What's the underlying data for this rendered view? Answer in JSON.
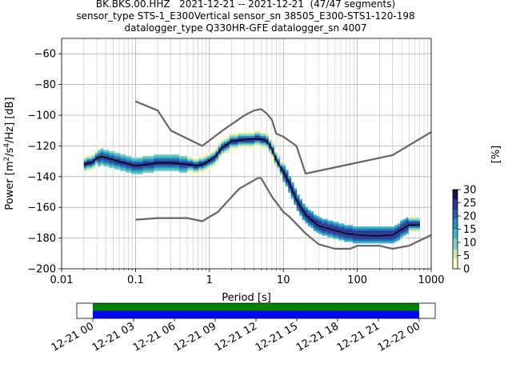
{
  "header": {
    "title_line1": "BK.BKS.00.HHZ   2021-12-21 -- 2021-12-21  (47/47 segments)",
    "title_line2": "sensor_type STS-1_E300Vertical sensor_sn 38505_E300-STS1-120-198",
    "title_line3": "datalogger_type Q330HR-GFE datalogger_sn 4007"
  },
  "chart_data": {
    "type": "heatmap",
    "xlabel": "Period [s]",
    "ylabel": "Power [m²/s⁴/Hz] [dB]",
    "xscale": "log",
    "xlim": [
      0.01,
      1000
    ],
    "ylim": [
      -200,
      -50
    ],
    "x_ticks": [
      0.01,
      0.1,
      1,
      10,
      100,
      1000
    ],
    "x_tick_labels": [
      "0.01",
      "0.1",
      "1",
      "10",
      "100",
      "1000"
    ],
    "y_ticks": [
      -200,
      -180,
      -160,
      -140,
      -120,
      -100,
      -80,
      -60
    ],
    "y_tick_labels": [
      "−200",
      "−180",
      "−160",
      "−140",
      "−120",
      "−100",
      "−80",
      "−60"
    ],
    "grid": true,
    "series": [
      {
        "name": "",
        "color": "#000000",
        "x": [
          0.02,
          0.025,
          0.03,
          0.035,
          0.05,
          0.07,
          0.1,
          0.15,
          0.2,
          0.3,
          0.5,
          0.7,
          0.9,
          1.2,
          1.5,
          2,
          3,
          4,
          5,
          6,
          7,
          8,
          10,
          12,
          15,
          20,
          30,
          50,
          70,
          100,
          150,
          200,
          300,
          500,
          700
        ],
        "y": [
          -132,
          -131,
          -128,
          -127,
          -129,
          -131,
          -133,
          -132,
          -131,
          -131,
          -132,
          -133,
          -131,
          -127,
          -121,
          -117,
          -116,
          -115.5,
          -115.5,
          -117,
          -122,
          -129,
          -137,
          -144,
          -155,
          -165,
          -172,
          -175,
          -177,
          -178,
          -178.5,
          -178.5,
          -178,
          -171.5,
          -171.5
        ]
      },
      {
        "name": "",
        "color": "#666666",
        "x": [
          0.1,
          0.2,
          0.3,
          0.8,
          1.5,
          3,
          4,
          5,
          6,
          7,
          8,
          10,
          15,
          20,
          300,
          1000
        ],
        "y": [
          -91,
          -97,
          -110,
          -120,
          -110,
          -100,
          -97,
          -96,
          -99,
          -103,
          -112,
          -114,
          -120,
          -138,
          -126,
          -111
        ]
      },
      {
        "name": "",
        "color": "#666666",
        "x": [
          0.1,
          0.2,
          0.5,
          0.8,
          1.3,
          2.5,
          4.5,
          5,
          7,
          10,
          12,
          20,
          30,
          50,
          80,
          100,
          150,
          200,
          300,
          500,
          1000
        ],
        "y": [
          -168,
          -167,
          -167,
          -169,
          -163,
          -148,
          -141,
          -141,
          -153,
          -163,
          -166,
          -177,
          -184,
          -187,
          -187,
          -185,
          -185,
          -185,
          -187,
          -185,
          -178
        ]
      }
    ],
    "colorbar": {
      "label": "[%]",
      "min": 0,
      "max": 30,
      "ticks": [
        0,
        5,
        10,
        15,
        20,
        25,
        30
      ],
      "tick_labels": [
        "0",
        "5",
        "10",
        "15",
        "20",
        "25",
        "30"
      ],
      "colors": [
        "#ffffcc",
        "#c7e9b4",
        "#7fcdbb",
        "#41b6c4",
        "#1d91c0",
        "#225ea8",
        "#253494",
        "#1a0a4a"
      ]
    },
    "timeline": {
      "tick_labels": [
        "12-21 00",
        "12-21 03",
        "12-21 06",
        "12-21 09",
        "12-21 12",
        "12-21 15",
        "12-21 18",
        "12-21 21",
        "12-22 00"
      ],
      "colors": [
        "#008000",
        "#0000ff"
      ]
    }
  }
}
